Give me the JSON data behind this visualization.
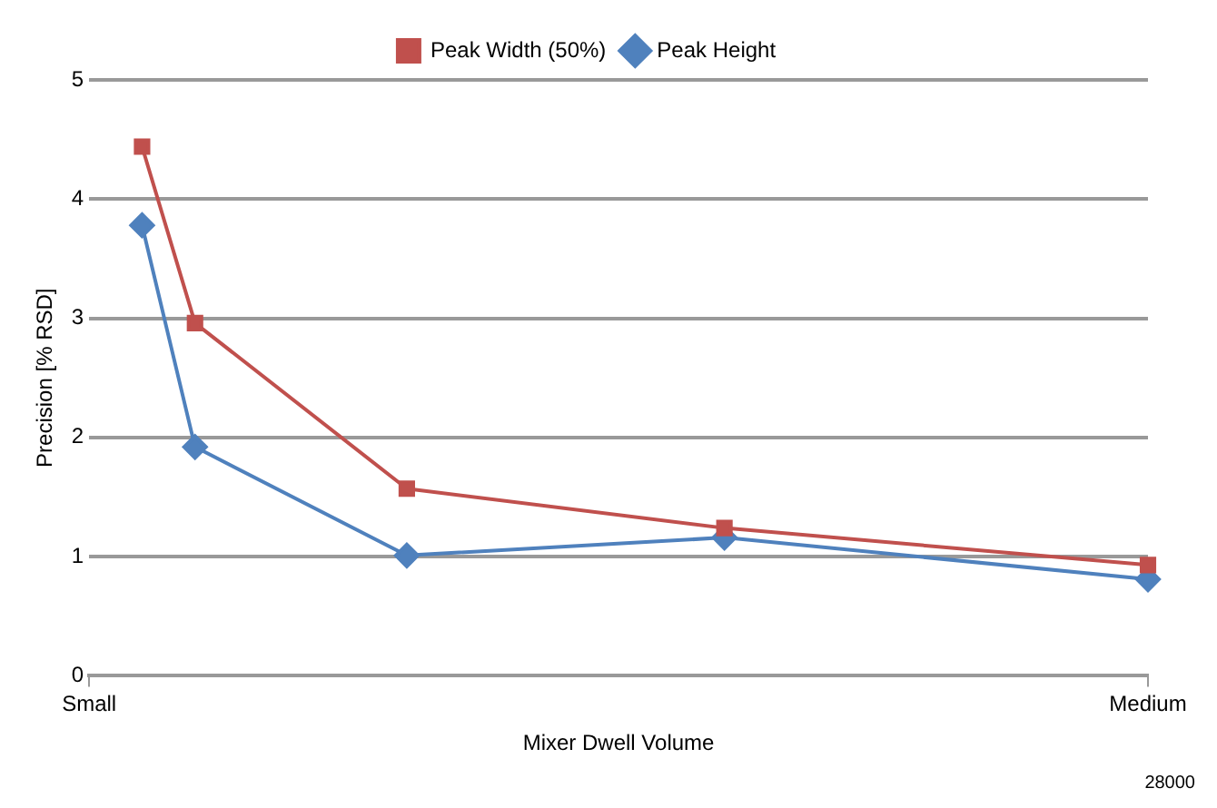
{
  "chart_data": {
    "type": "line",
    "xlabel": "Mixer Dwell Volume",
    "ylabel": "Precision [% RSD]",
    "categories": [
      "Small",
      null,
      null,
      null,
      null,
      null,
      null,
      null,
      null,
      null,
      null,
      null,
      null,
      null,
      null,
      null,
      null,
      null,
      null,
      null,
      "Medium"
    ],
    "ylim": [
      0,
      5
    ],
    "yticks": [
      0,
      1,
      2,
      3,
      4,
      5
    ],
    "grid": "y",
    "legend": "top",
    "series": [
      {
        "name": "Peak Height",
        "color": "#4f81bd",
        "marker": "diamond",
        "values": [
          null,
          3.78,
          1.92,
          null,
          null,
          null,
          1.01,
          null,
          null,
          null,
          null,
          null,
          1.16,
          null,
          null,
          null,
          null,
          null,
          null,
          null,
          0.81
        ]
      },
      {
        "name": "Peak Width (50%)",
        "color": "#c0504d",
        "marker": "square",
        "values": [
          null,
          4.44,
          2.96,
          null,
          null,
          null,
          1.57,
          null,
          null,
          null,
          null,
          null,
          1.24,
          null,
          null,
          null,
          null,
          null,
          null,
          null,
          0.93
        ]
      }
    ],
    "annotations": [
      "28000"
    ]
  }
}
